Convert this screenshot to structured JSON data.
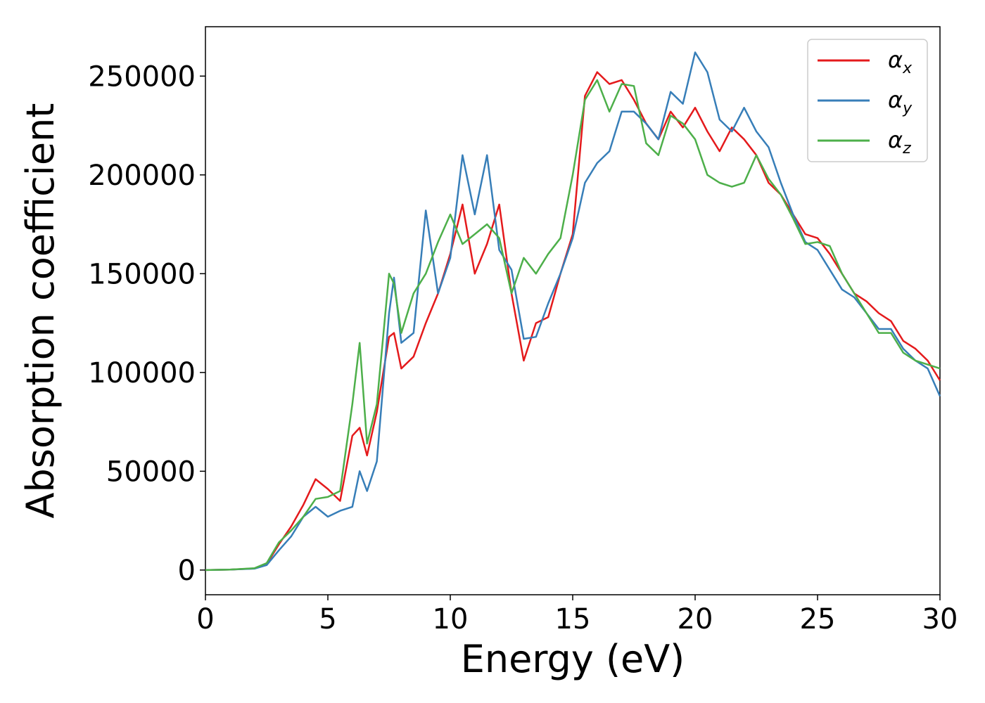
{
  "chart_data": {
    "type": "line",
    "xlabel": "Energy (eV)",
    "ylabel": "Absorption coefficient",
    "xlim": [
      0,
      30
    ],
    "ylim": [
      -12500,
      275000
    ],
    "x_ticks": [
      0,
      5,
      10,
      15,
      20,
      25,
      30
    ],
    "y_ticks": [
      0,
      50000,
      100000,
      150000,
      200000,
      250000
    ],
    "grid": false,
    "legend_position": "top-right",
    "x": [
      0,
      1,
      2,
      2.5,
      3,
      3.5,
      4,
      4.5,
      5,
      5.5,
      6,
      6.3,
      6.6,
      7,
      7.5,
      7.7,
      8,
      8.5,
      9,
      9.5,
      10,
      10.5,
      11,
      11.5,
      12,
      12.5,
      13,
      13.5,
      14,
      14.5,
      15,
      15.5,
      16,
      16.5,
      17,
      17.5,
      18,
      18.5,
      19,
      19.5,
      20,
      20.5,
      21,
      21.5,
      22,
      22.5,
      23,
      23.5,
      24,
      24.5,
      25,
      25.5,
      26,
      26.5,
      27,
      27.5,
      28,
      28.5,
      29,
      29.5,
      30
    ],
    "series": [
      {
        "name": "α",
        "subscript": "x",
        "color": "#e41a1c",
        "values": [
          0,
          200,
          800,
          3000,
          13000,
          22000,
          33000,
          46000,
          41000,
          35000,
          68000,
          72000,
          58000,
          80000,
          118000,
          120000,
          102000,
          108000,
          125000,
          140000,
          160000,
          185000,
          150000,
          165000,
          185000,
          140000,
          106000,
          125000,
          128000,
          150000,
          170000,
          240000,
          252000,
          246000,
          248000,
          238000,
          226000,
          218000,
          232000,
          224000,
          234000,
          222000,
          212000,
          224000,
          218000,
          210000,
          196000,
          190000,
          180000,
          170000,
          168000,
          160000,
          150000,
          140000,
          136000,
          130000,
          126000,
          116000,
          112000,
          106000,
          96000
        ]
      },
      {
        "name": "α",
        "subscript": "y",
        "color": "#377eb8",
        "values": [
          0,
          200,
          700,
          2500,
          10000,
          17000,
          27000,
          32000,
          27000,
          30000,
          32000,
          50000,
          40000,
          55000,
          130000,
          148000,
          115000,
          120000,
          182000,
          140000,
          158000,
          210000,
          180000,
          210000,
          162000,
          152000,
          117000,
          118000,
          135000,
          150000,
          168000,
          196000,
          206000,
          212000,
          232000,
          232000,
          226000,
          218000,
          242000,
          236000,
          262000,
          252000,
          228000,
          222000,
          234000,
          222000,
          214000,
          196000,
          180000,
          166000,
          162000,
          152000,
          142000,
          138000,
          130000,
          122000,
          122000,
          112000,
          106000,
          102000,
          88000
        ]
      },
      {
        "name": "α",
        "subscript": "z",
        "color": "#4daf4a",
        "values": [
          0,
          200,
          900,
          3500,
          14000,
          20000,
          27000,
          36000,
          37000,
          40000,
          84000,
          115000,
          64000,
          84000,
          150000,
          145000,
          120000,
          140000,
          150000,
          166000,
          180000,
          165000,
          170000,
          175000,
          168000,
          140000,
          158000,
          150000,
          160000,
          168000,
          200000,
          238000,
          248000,
          232000,
          246000,
          245000,
          216000,
          210000,
          230000,
          226000,
          218000,
          200000,
          196000,
          194000,
          196000,
          210000,
          198000,
          190000,
          178000,
          165000,
          166000,
          164000,
          150000,
          140000,
          130000,
          120000,
          120000,
          110000,
          106000,
          104000,
          102000
        ]
      }
    ]
  }
}
